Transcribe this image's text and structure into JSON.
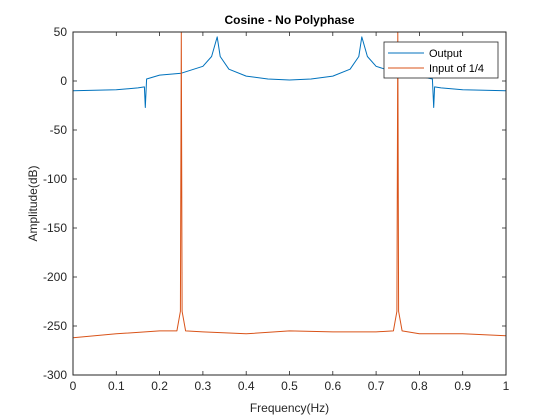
{
  "chart_data": {
    "type": "line",
    "title": "Cosine - No Polyphase",
    "xlabel": "Frequency(Hz)",
    "ylabel": "Amplitude(dB)",
    "xlim": [
      0,
      1
    ],
    "ylim": [
      -300,
      50
    ],
    "xticks": [
      0,
      0.1,
      0.2,
      0.3,
      0.4,
      0.5,
      0.6,
      0.7,
      0.8,
      0.9,
      1
    ],
    "xtick_labels": [
      "0",
      "0.1",
      "0.2",
      "0.3",
      "0.4",
      "0.5",
      "0.6",
      "0.7",
      "0.8",
      "0.9",
      "1"
    ],
    "yticks": [
      -300,
      -250,
      -200,
      -150,
      -100,
      -50,
      0,
      50
    ],
    "ytick_labels": [
      "-300",
      "-250",
      "-200",
      "-150",
      "-100",
      "-50",
      "0",
      "50"
    ],
    "grid": false,
    "legend_position": "top-right",
    "series": [
      {
        "name": "Output",
        "color": "#0072BD",
        "x": [
          0,
          0.1,
          0.15,
          0.165,
          0.167,
          0.17,
          0.2,
          0.25,
          0.3,
          0.32,
          0.333,
          0.34,
          0.36,
          0.4,
          0.45,
          0.5,
          0.55,
          0.6,
          0.64,
          0.66,
          0.667,
          0.68,
          0.7,
          0.75,
          0.8,
          0.83,
          0.833,
          0.835,
          0.85,
          0.9,
          1
        ],
        "y": [
          -10,
          -9,
          -7,
          -6,
          -27,
          2,
          6,
          8,
          15,
          25,
          45,
          25,
          12,
          5,
          2,
          1,
          2,
          5,
          12,
          25,
          45,
          25,
          15,
          8,
          5,
          2,
          -27,
          -6,
          -7,
          -9,
          -10
        ]
      },
      {
        "name": "Input of 1/4",
        "color": "#D95319",
        "x": [
          0,
          0.1,
          0.2,
          0.24,
          0.248,
          0.25,
          0.252,
          0.26,
          0.3,
          0.4,
          0.5,
          0.6,
          0.7,
          0.74,
          0.748,
          0.75,
          0.752,
          0.76,
          0.8,
          0.9,
          1
        ],
        "y": [
          -262,
          -258,
          -255,
          -255,
          -235,
          50,
          -235,
          -255,
          -256,
          -258,
          -255,
          -256,
          -256,
          -255,
          -235,
          50,
          -235,
          -255,
          -258,
          -258,
          -260
        ]
      }
    ]
  }
}
